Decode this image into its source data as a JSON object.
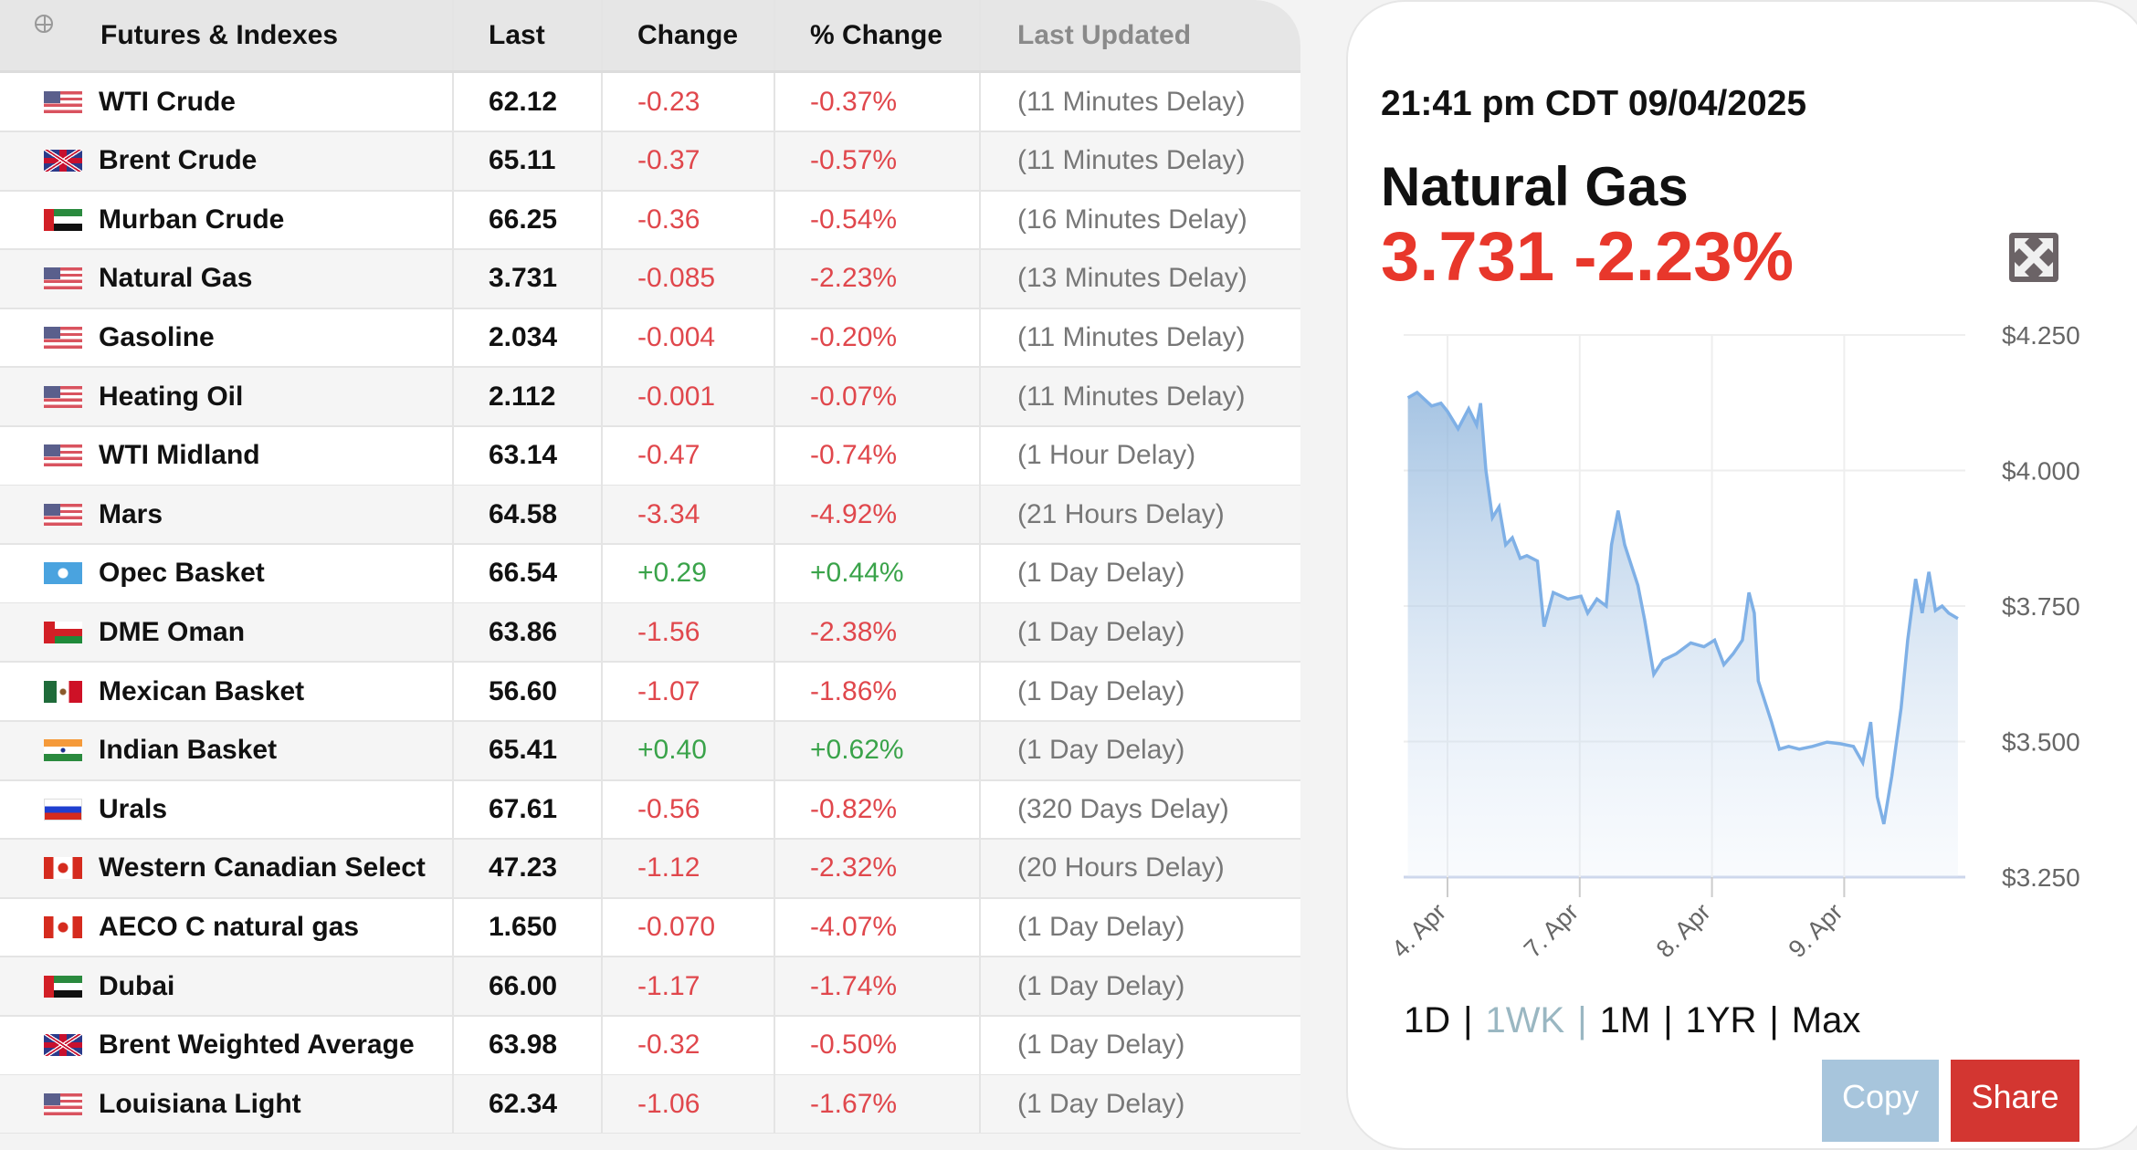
{
  "table": {
    "headers": [
      "Futures & Indexes",
      "Last",
      "Change",
      "% Change",
      "Last Updated"
    ],
    "rows": [
      {
        "flag": "us",
        "name": "WTI Crude",
        "last": "62.12",
        "change": "-0.23",
        "pct": "-0.37%",
        "updated": "(11 Minutes Delay)"
      },
      {
        "flag": "uk",
        "name": "Brent Crude",
        "last": "65.11",
        "change": "-0.37",
        "pct": "-0.57%",
        "updated": "(11 Minutes Delay)"
      },
      {
        "flag": "ae",
        "name": "Murban Crude",
        "last": "66.25",
        "change": "-0.36",
        "pct": "-0.54%",
        "updated": "(16 Minutes Delay)"
      },
      {
        "flag": "us",
        "name": "Natural Gas",
        "last": "3.731",
        "change": "-0.085",
        "pct": "-2.23%",
        "updated": "(13 Minutes Delay)"
      },
      {
        "flag": "us",
        "name": "Gasoline",
        "last": "2.034",
        "change": "-0.004",
        "pct": "-0.20%",
        "updated": "(11 Minutes Delay)"
      },
      {
        "flag": "us",
        "name": "Heating Oil",
        "last": "2.112",
        "change": "-0.001",
        "pct": "-0.07%",
        "updated": "(11 Minutes Delay)"
      },
      {
        "flag": "us",
        "name": "WTI Midland",
        "last": "63.14",
        "change": "-0.47",
        "pct": "-0.74%",
        "updated": "(1 Hour Delay)"
      },
      {
        "flag": "us",
        "name": "Mars",
        "last": "64.58",
        "change": "-3.34",
        "pct": "-4.92%",
        "updated": "(21 Hours Delay)"
      },
      {
        "flag": "opec",
        "name": "Opec Basket",
        "last": "66.54",
        "change": "+0.29",
        "pct": "+0.44%",
        "updated": "(1 Day Delay)"
      },
      {
        "flag": "om",
        "name": "DME Oman",
        "last": "63.86",
        "change": "-1.56",
        "pct": "-2.38%",
        "updated": "(1 Day Delay)"
      },
      {
        "flag": "mx",
        "name": "Mexican Basket",
        "last": "56.60",
        "change": "-1.07",
        "pct": "-1.86%",
        "updated": "(1 Day Delay)"
      },
      {
        "flag": "in",
        "name": "Indian Basket",
        "last": "65.41",
        "change": "+0.40",
        "pct": "+0.62%",
        "updated": "(1 Day Delay)"
      },
      {
        "flag": "ru",
        "name": "Urals",
        "last": "67.61",
        "change": "-0.56",
        "pct": "-0.82%",
        "updated": "(320 Days Delay)"
      },
      {
        "flag": "ca",
        "name": "Western Canadian Select",
        "last": "47.23",
        "change": "-1.12",
        "pct": "-2.32%",
        "updated": "(20 Hours Delay)"
      },
      {
        "flag": "ca",
        "name": "AECO C natural gas",
        "last": "1.650",
        "change": "-0.070",
        "pct": "-4.07%",
        "updated": "(1 Day Delay)"
      },
      {
        "flag": "ae",
        "name": "Dubai",
        "last": "66.00",
        "change": "-1.17",
        "pct": "-1.74%",
        "updated": "(1 Day Delay)"
      },
      {
        "flag": "uk",
        "name": "Brent Weighted Average",
        "last": "63.98",
        "change": "-0.32",
        "pct": "-0.50%",
        "updated": "(1 Day Delay)"
      },
      {
        "flag": "us",
        "name": "Louisiana Light",
        "last": "62.34",
        "change": "-1.06",
        "pct": "-1.67%",
        "updated": "(1 Day Delay)"
      }
    ]
  },
  "detail": {
    "timestamp": "21:41 pm CDT 09/04/2025",
    "title": "Natural Gas",
    "price_line": "3.731 -2.23%",
    "ranges": [
      "1D",
      "1WK",
      "1M",
      "1YR",
      "Max"
    ],
    "selected_range": "1WK",
    "copy_label": "Copy",
    "share_label": "Share",
    "colors": {
      "negative": "#e8372b",
      "positive": "#3aa34a",
      "line": "#7fb0e6",
      "copy": "#a7c5dc",
      "share": "#d33631"
    }
  },
  "chart_data": {
    "type": "area",
    "x_unit": "trading days (0 = 4. Apr)",
    "xticks": [
      {
        "x": 0,
        "label": "4. Apr"
      },
      {
        "x": 1,
        "label": "7. Apr"
      },
      {
        "x": 2,
        "label": "8. Apr"
      },
      {
        "x": 3,
        "label": "9. Apr"
      }
    ],
    "ylim": [
      3.25,
      4.25
    ],
    "yticks": [
      {
        "v": 4.25,
        "label": "$4.250"
      },
      {
        "v": 4.0,
        "label": "$4.000"
      },
      {
        "v": 3.75,
        "label": "$3.750"
      },
      {
        "v": 3.5,
        "label": "$3.500"
      },
      {
        "v": 3.25,
        "label": "$3.250"
      }
    ],
    "xlim": [
      -0.3,
      3.86
    ],
    "points": [
      [
        -0.3,
        4.134
      ],
      [
        -0.23,
        4.144
      ],
      [
        -0.12,
        4.119
      ],
      [
        -0.05,
        4.124
      ],
      [
        0,
        4.109
      ],
      [
        0.08,
        4.077
      ],
      [
        0.16,
        4.114
      ],
      [
        0.22,
        4.084
      ],
      [
        0.25,
        4.124
      ],
      [
        0.29,
        4.001
      ],
      [
        0.34,
        3.913
      ],
      [
        0.39,
        3.933
      ],
      [
        0.44,
        3.863
      ],
      [
        0.49,
        3.876
      ],
      [
        0.55,
        3.838
      ],
      [
        0.6,
        3.843
      ],
      [
        0.68,
        3.833
      ],
      [
        0.73,
        3.712
      ],
      [
        0.8,
        3.775
      ],
      [
        0.91,
        3.763
      ],
      [
        1.01,
        3.768
      ],
      [
        1.06,
        3.737
      ],
      [
        1.13,
        3.763
      ],
      [
        1.2,
        3.75
      ],
      [
        1.24,
        3.863
      ],
      [
        1.29,
        3.926
      ],
      [
        1.34,
        3.863
      ],
      [
        1.39,
        3.825
      ],
      [
        1.44,
        3.788
      ],
      [
        1.49,
        3.725
      ],
      [
        1.56,
        3.624
      ],
      [
        1.63,
        3.65
      ],
      [
        1.73,
        3.662
      ],
      [
        1.84,
        3.682
      ],
      [
        1.94,
        3.675
      ],
      [
        2.02,
        3.687
      ],
      [
        2.09,
        3.642
      ],
      [
        2.16,
        3.662
      ],
      [
        2.23,
        3.687
      ],
      [
        2.28,
        3.775
      ],
      [
        2.32,
        3.737
      ],
      [
        2.35,
        3.612
      ],
      [
        2.4,
        3.574
      ],
      [
        2.45,
        3.536
      ],
      [
        2.51,
        3.486
      ],
      [
        2.58,
        3.491
      ],
      [
        2.66,
        3.486
      ],
      [
        2.76,
        3.491
      ],
      [
        2.87,
        3.499
      ],
      [
        2.97,
        3.496
      ],
      [
        3.07,
        3.491
      ],
      [
        3.14,
        3.461
      ],
      [
        3.2,
        3.536
      ],
      [
        3.25,
        3.398
      ],
      [
        3.3,
        3.348
      ],
      [
        3.36,
        3.436
      ],
      [
        3.43,
        3.562
      ],
      [
        3.48,
        3.687
      ],
      [
        3.54,
        3.8
      ],
      [
        3.59,
        3.737
      ],
      [
        3.64,
        3.813
      ],
      [
        3.69,
        3.742
      ],
      [
        3.74,
        3.75
      ],
      [
        3.79,
        3.737
      ],
      [
        3.86,
        3.727
      ]
    ],
    "title": "Natural Gas",
    "xlabel": "",
    "ylabel": "",
    "grid": true,
    "legend": "none"
  }
}
